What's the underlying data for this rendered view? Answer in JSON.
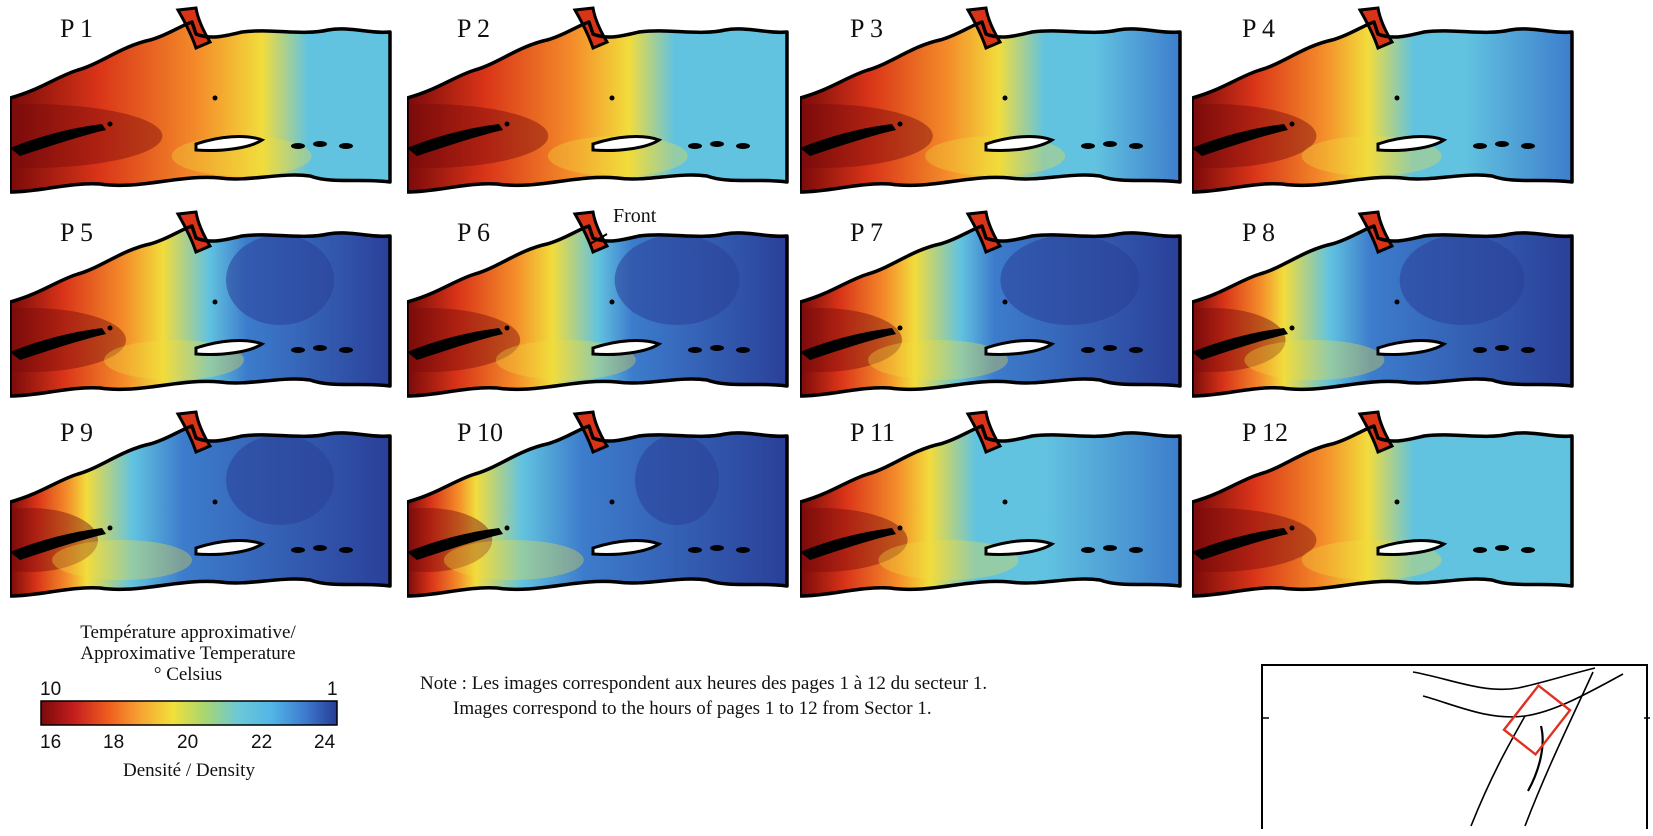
{
  "panels": [
    {
      "label": "P 1",
      "warm_extent": 0.66,
      "cold_extent": 0.0,
      "variant": 0
    },
    {
      "label": "P 2",
      "warm_extent": 0.58,
      "cold_extent": 0.0,
      "variant": 1
    },
    {
      "label": "P 3",
      "warm_extent": 0.52,
      "cold_extent": 0.1,
      "variant": 2
    },
    {
      "label": "P 4",
      "warm_extent": 0.46,
      "cold_extent": 0.18,
      "variant": 3
    },
    {
      "label": "P 5",
      "warm_extent": 0.4,
      "cold_extent": 0.45,
      "variant": 4
    },
    {
      "label": "P 6",
      "warm_extent": 0.38,
      "cold_extent": 0.52,
      "variant": 5
    },
    {
      "label": "P 7",
      "warm_extent": 0.3,
      "cold_extent": 0.58,
      "variant": 6
    },
    {
      "label": "P 8",
      "warm_extent": 0.24,
      "cold_extent": 0.52,
      "variant": 7
    },
    {
      "label": "P 9",
      "warm_extent": 0.2,
      "cold_extent": 0.45,
      "variant": 8
    },
    {
      "label": "P 10",
      "warm_extent": 0.18,
      "cold_extent": 0.35,
      "variant": 9
    },
    {
      "label": "P 11",
      "warm_extent": 0.34,
      "cold_extent": 0.1,
      "variant": 10
    },
    {
      "label": "P 12",
      "warm_extent": 0.46,
      "cold_extent": 0.05,
      "variant": 11
    }
  ],
  "front_annotation": "Front",
  "legend": {
    "title_fr": "Température approximative/",
    "title_en": "Approximative Temperature",
    "unit": "° Celsius",
    "temp_min_label": "10",
    "temp_max_label": "1",
    "density_ticks": [
      "16",
      "18",
      "20",
      "22",
      "24"
    ],
    "density_label": "Densité / Density",
    "colors": [
      "#7a0a0a",
      "#c41e1e",
      "#ee5a1e",
      "#f6a233",
      "#f2e03a",
      "#a7d672",
      "#6cc8d8",
      "#52b6e6",
      "#3e7dd0",
      "#283c96"
    ]
  },
  "note": {
    "line1": "Note : Les images correspondent aux heures des pages 1 à 12 du secteur 1.",
    "line2": "Images correspond to the hours of pages 1 to 12 from Sector 1."
  },
  "colors": {
    "deep_warm": "#7a0a0a",
    "warm": "#d93418",
    "orange": "#f48d2a",
    "yellow": "#f2dc3c",
    "cyan": "#62c3e0",
    "blue": "#3d7ccc",
    "dark_blue": "#2a3f98",
    "inset_box": "#e03020"
  }
}
